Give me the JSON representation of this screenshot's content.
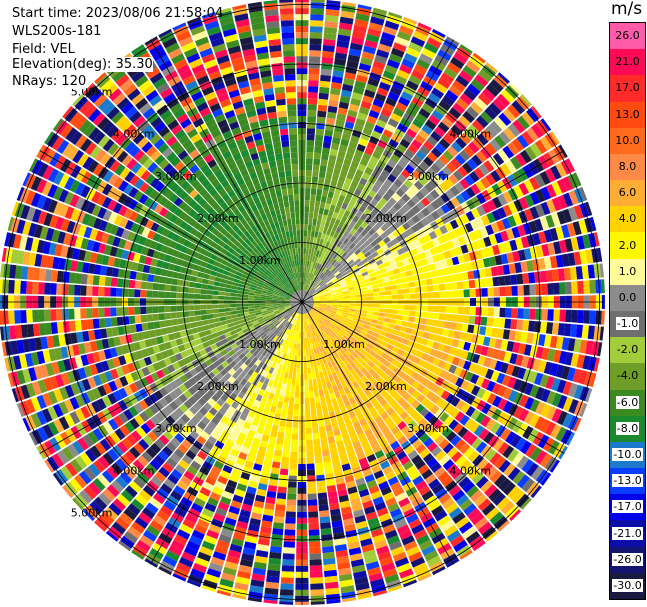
{
  "header": {
    "start_time": "Start time: 2023/08/06 21:58:04",
    "site": "WLS200s-181",
    "field": "Field: VEL",
    "elevation": "Elevation(deg): 35.30",
    "nrays": "NRays: 120"
  },
  "colorbar": {
    "unit": "m/s",
    "tick_labels": [
      "26.0",
      "21.0",
      "17.0",
      "13.0",
      "10.0",
      "8.0",
      "6.0",
      "4.0",
      "2.0",
      "1.0",
      "0.0",
      "-1.0",
      "-2.0",
      "-4.0",
      "-6.0",
      "-8.0",
      "-10.0",
      "-13.0",
      "-17.0",
      "-21.0",
      "-26.0",
      "-30.0"
    ],
    "colors": [
      "#ff5ba8",
      "#ff0a55",
      "#ff2b2b",
      "#ff4a10",
      "#ff6a1c",
      "#ff8a48",
      "#ffad35",
      "#ffd200",
      "#fff700",
      "#fffa98",
      "#8c8c8c",
      "#6f6f6f",
      "#a2cc3a",
      "#6e9e28",
      "#3c8a22",
      "#1b8a2e",
      "#1b7acc",
      "#0a3cff",
      "#0000e8",
      "#0c0ca6",
      "#131370",
      "#1a1a40"
    ]
  },
  "chart_data": {
    "type": "heatmap",
    "subtype": "polar PPI (plan position indicator) radar scan",
    "field": "VEL",
    "units": "m/s",
    "nrays": 120,
    "range_ring_labels_km": [
      1.0,
      2.0,
      3.0,
      4.0,
      5.0
    ],
    "ring_labels": [
      {
        "text": "1.00km",
        "bearing_deg": 315
      },
      {
        "text": "1.00km",
        "bearing_deg": 225
      },
      {
        "text": "1.00km",
        "bearing_deg": 135
      },
      {
        "text": "2.00km",
        "bearing_deg": 315
      },
      {
        "text": "2.00km",
        "bearing_deg": 45
      },
      {
        "text": "2.00km",
        "bearing_deg": 225
      },
      {
        "text": "2.00km",
        "bearing_deg": 135
      },
      {
        "text": "3.00km",
        "bearing_deg": 315
      },
      {
        "text": "3.00km",
        "bearing_deg": 45
      },
      {
        "text": "3.00km",
        "bearing_deg": 225
      },
      {
        "text": "3.00km",
        "bearing_deg": 135
      },
      {
        "text": "4.00km",
        "bearing_deg": 315
      },
      {
        "text": "4.00km",
        "bearing_deg": 45
      },
      {
        "text": "4.00km",
        "bearing_deg": 225
      },
      {
        "text": "4.00km",
        "bearing_deg": 135
      },
      {
        "text": "5.00km",
        "bearing_deg": 315
      },
      {
        "text": "5.00km",
        "bearing_deg": 225
      }
    ],
    "colorbar_bounds": [
      -30.0,
      -26.0,
      -21.0,
      -17.0,
      -13.0,
      -10.0,
      -8.0,
      -6.0,
      -4.0,
      -2.0,
      -1.0,
      0.0,
      1.0,
      2.0,
      4.0,
      6.0,
      8.0,
      10.0,
      13.0,
      17.0,
      21.0,
      26.0
    ],
    "velocity_pattern": {
      "northwest_sector": "negative velocities, about -2 to -6 m/s (green)",
      "southeast_sector": "positive velocities, about 2 to 6 m/s (yellow/orange)",
      "near_zero_bands": "around 0 m/s (gray) along the northeast and southwest",
      "outer_ranges": "noise, mixed colors spanning the full -30 to 26 m/s scale"
    },
    "grid": true
  }
}
